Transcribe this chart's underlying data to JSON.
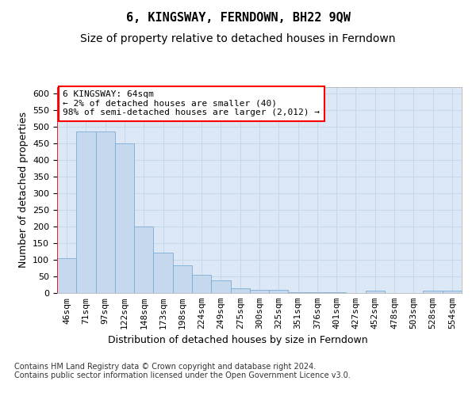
{
  "title": "6, KINGSWAY, FERNDOWN, BH22 9QW",
  "subtitle": "Size of property relative to detached houses in Ferndown",
  "xlabel": "Distribution of detached houses by size in Ferndown",
  "ylabel": "Number of detached properties",
  "categories": [
    "46sqm",
    "71sqm",
    "97sqm",
    "122sqm",
    "148sqm",
    "173sqm",
    "198sqm",
    "224sqm",
    "249sqm",
    "275sqm",
    "300sqm",
    "325sqm",
    "351sqm",
    "376sqm",
    "401sqm",
    "427sqm",
    "452sqm",
    "478sqm",
    "503sqm",
    "528sqm",
    "554sqm"
  ],
  "values": [
    105,
    487,
    487,
    450,
    200,
    122,
    83,
    55,
    38,
    15,
    9,
    10,
    2,
    2,
    2,
    1,
    6,
    1,
    1,
    6,
    6
  ],
  "bar_color": "#c5d8ed",
  "bar_edge_color": "#7badd4",
  "grid_color": "#c8d8e8",
  "plot_bg_color": "#dce8f5",
  "annotation_text": "6 KINGSWAY: 64sqm\n← 2% of detached houses are smaller (40)\n98% of semi-detached houses are larger (2,012) →",
  "property_line_x": 0,
  "ylim": [
    0,
    620
  ],
  "yticks": [
    0,
    50,
    100,
    150,
    200,
    250,
    300,
    350,
    400,
    450,
    500,
    550,
    600
  ],
  "footer": "Contains HM Land Registry data © Crown copyright and database right 2024.\nContains public sector information licensed under the Open Government Licence v3.0.",
  "title_fontsize": 11,
  "subtitle_fontsize": 10,
  "ylabel_fontsize": 9,
  "xlabel_fontsize": 9,
  "tick_fontsize": 8,
  "annotation_fontsize": 8,
  "footer_fontsize": 7
}
